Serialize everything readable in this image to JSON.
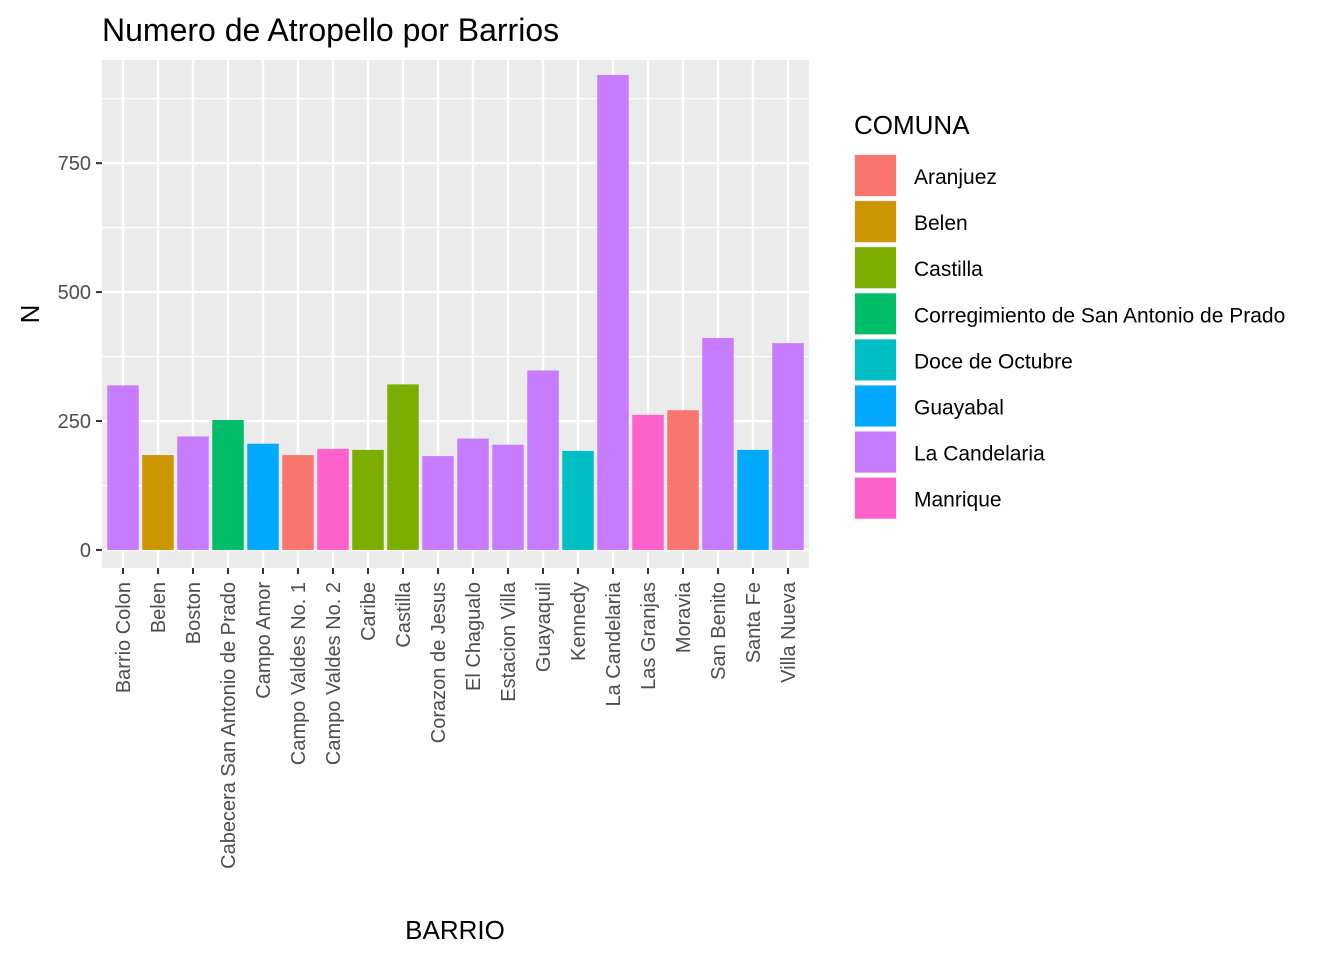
{
  "chart_data": {
    "type": "bar",
    "title": "Numero de  Atropello por Barrios",
    "xlabel": "BARRIO",
    "ylabel": "N",
    "ylim": [
      -35,
      950
    ],
    "yticks": [
      0,
      250,
      500,
      750
    ],
    "grid": true,
    "legend_position": "right",
    "legend_title": "COMUNA",
    "legend": [
      {
        "name": "Aranjuez",
        "color": "#F8766D"
      },
      {
        "name": "Belen",
        "color": "#CD9600"
      },
      {
        "name": "Castilla",
        "color": "#7CAE00"
      },
      {
        "name": "Corregimiento de San Antonio de Prado",
        "color": "#00BE67"
      },
      {
        "name": "Doce de Octubre",
        "color": "#00BFC4"
      },
      {
        "name": "Guayabal",
        "color": "#00A9FF"
      },
      {
        "name": "La Candelaria",
        "color": "#C77CFF"
      },
      {
        "name": "Manrique",
        "color": "#FF61CC"
      }
    ],
    "bars": [
      {
        "category": "Barrio Colon",
        "value": 319,
        "comuna": "La Candelaria"
      },
      {
        "category": "Belen",
        "value": 184,
        "comuna": "Belen"
      },
      {
        "category": "Boston",
        "value": 220,
        "comuna": "La Candelaria"
      },
      {
        "category": "Cabecera San Antonio de Prado",
        "value": 252,
        "comuna": "Corregimiento de San Antonio de Prado"
      },
      {
        "category": "Campo Amor",
        "value": 206,
        "comuna": "Guayabal"
      },
      {
        "category": "Campo Valdes No. 1",
        "value": 184,
        "comuna": "Aranjuez"
      },
      {
        "category": "Campo Valdes No. 2",
        "value": 196,
        "comuna": "Manrique"
      },
      {
        "category": "Caribe",
        "value": 194,
        "comuna": "Castilla"
      },
      {
        "category": "Castilla",
        "value": 321,
        "comuna": "Castilla"
      },
      {
        "category": "Corazon de Jesus",
        "value": 182,
        "comuna": "La Candelaria"
      },
      {
        "category": "El Chagualo",
        "value": 216,
        "comuna": "La Candelaria"
      },
      {
        "category": "Estacion Villa",
        "value": 204,
        "comuna": "La Candelaria"
      },
      {
        "category": "Guayaquil",
        "value": 348,
        "comuna": "La Candelaria"
      },
      {
        "category": "Kennedy",
        "value": 192,
        "comuna": "Doce de Octubre"
      },
      {
        "category": "La Candelaria",
        "value": 921,
        "comuna": "La Candelaria"
      },
      {
        "category": "Las Granjas",
        "value": 262,
        "comuna": "Manrique"
      },
      {
        "category": "Moravia",
        "value": 271,
        "comuna": "Aranjuez"
      },
      {
        "category": "San Benito",
        "value": 411,
        "comuna": "La Candelaria"
      },
      {
        "category": "Santa Fe",
        "value": 194,
        "comuna": "Guayabal"
      },
      {
        "category": "Villa Nueva",
        "value": 401,
        "comuna": "La Candelaria"
      }
    ]
  }
}
